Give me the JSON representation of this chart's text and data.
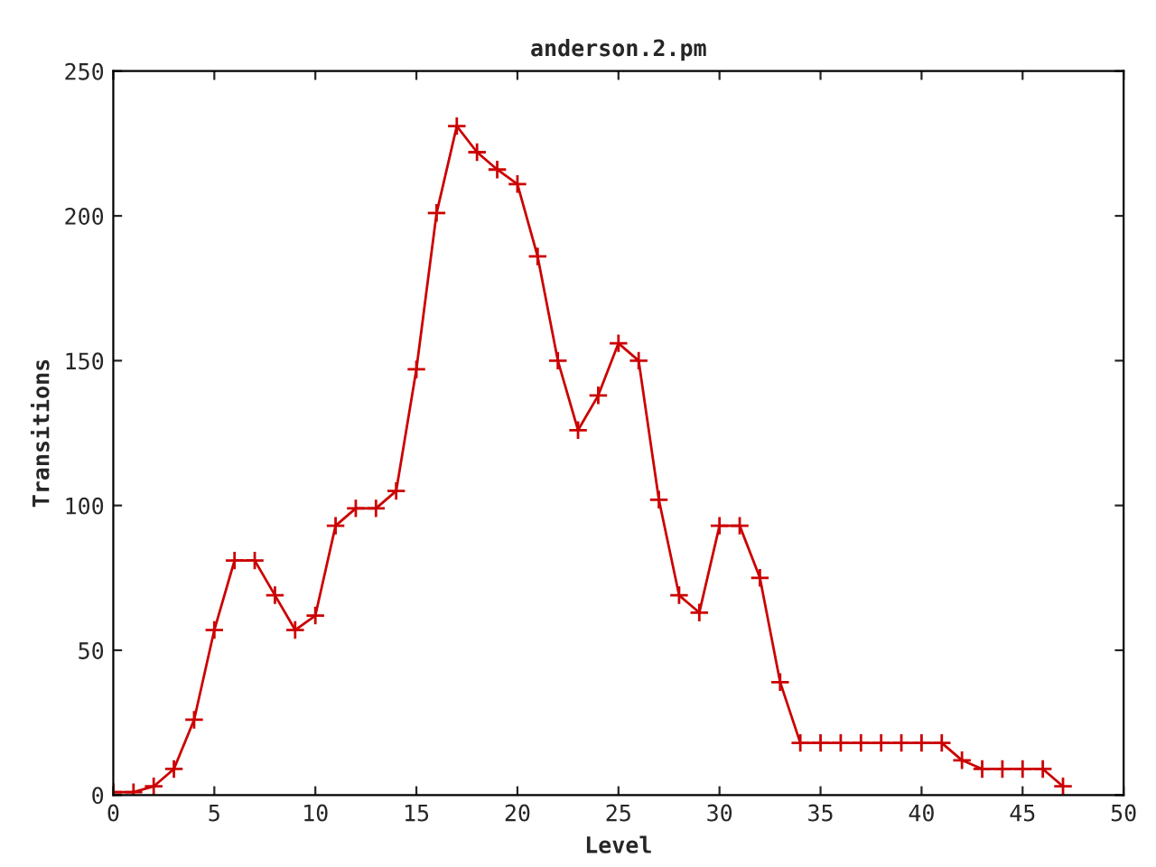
{
  "chart_data": {
    "type": "line",
    "title": "anderson.2.pm",
    "xlabel": "Level",
    "ylabel": "Transitions",
    "x": [
      0,
      1,
      2,
      3,
      4,
      5,
      6,
      7,
      8,
      9,
      10,
      11,
      12,
      13,
      14,
      15,
      16,
      17,
      18,
      19,
      20,
      21,
      22,
      23,
      24,
      25,
      26,
      27,
      28,
      29,
      30,
      31,
      32,
      33,
      34,
      35,
      36,
      37,
      38,
      39,
      40,
      41,
      42,
      43,
      44,
      45,
      46,
      47
    ],
    "series": [
      {
        "color": "#cc0000",
        "values": [
          1,
          1,
          3,
          9,
          26,
          57,
          81,
          81,
          69,
          57,
          62,
          93,
          99,
          99,
          105,
          147,
          201,
          231,
          222,
          216,
          211,
          186,
          150,
          126,
          138,
          156,
          150,
          102,
          69,
          63,
          93,
          93,
          75,
          39,
          18,
          18,
          18,
          18,
          18,
          18,
          18,
          18,
          12,
          9,
          9,
          9,
          9,
          3
        ]
      }
    ],
    "xlim": [
      0,
      50
    ],
    "xticks": [
      0,
      5,
      10,
      15,
      20,
      25,
      30,
      35,
      40,
      45,
      50
    ],
    "ylim": [
      0,
      250
    ],
    "yticks": [
      0,
      50,
      100,
      150,
      200,
      250
    ],
    "grid": false,
    "marker": "cross",
    "line_style": "solid"
  }
}
